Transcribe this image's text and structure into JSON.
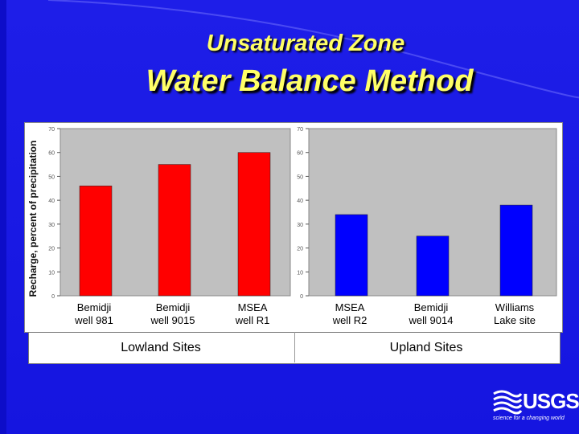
{
  "title_line1": "Unsaturated Zone",
  "title_line2": "Water Balance Method",
  "ylabel": "Recharge, percent of precipitation",
  "groups": [
    "Lowland Sites",
    "Upland Sites"
  ],
  "colors": {
    "lowland": "#ff0000",
    "upland": "#0000ff",
    "plot_bg": "#c0c0c0"
  },
  "logo": {
    "name": "USGS",
    "tagline": "science for a changing world"
  },
  "chart_data": [
    {
      "type": "bar",
      "categories": [
        [
          "Bemidji",
          "well 981"
        ],
        [
          "Bemidji",
          "well 9015"
        ],
        [
          "MSEA",
          "well R1"
        ]
      ],
      "values": [
        46,
        55,
        60
      ],
      "ylim": [
        0,
        70
      ],
      "yticks": [
        "0",
        "10",
        "20",
        "30",
        "40",
        "50",
        "60",
        "70"
      ],
      "grid": false,
      "color": "#ff0000"
    },
    {
      "type": "bar",
      "categories": [
        [
          "MSEA",
          "well R2"
        ],
        [
          "Bemidji",
          "well 9014"
        ],
        [
          "Williams",
          "Lake site"
        ]
      ],
      "values": [
        34,
        25,
        38
      ],
      "ylim": [
        0,
        70
      ],
      "yticks": [
        "0",
        "10",
        "20",
        "30",
        "40",
        "50",
        "60",
        "70"
      ],
      "grid": false,
      "color": "#0000ff"
    }
  ]
}
